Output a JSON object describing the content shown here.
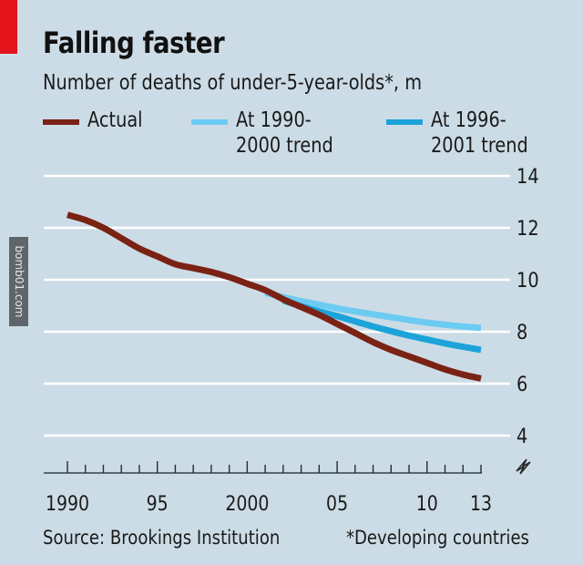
{
  "header": {
    "title": "Falling faster",
    "subtitle": "Number of deaths of under-5-year-olds*, m"
  },
  "legend": [
    {
      "label": "Actual",
      "color": "#7a2214"
    },
    {
      "label": "At 1990-\n2000 trend",
      "color": "#6ccbf2"
    },
    {
      "label": "At 1996-\n2001 trend",
      "color": "#1ba3da"
    }
  ],
  "footer": {
    "source": "Source: Brookings Institution",
    "note": "*Developing countries"
  },
  "watermark": "bomb01.com",
  "colors": {
    "background": "#ccdce6",
    "accent_bar": "#e3141b",
    "gridline": "#ffffff",
    "axis": "#5a6a72"
  },
  "chart_data": {
    "type": "line",
    "title": "Falling faster",
    "subtitle": "Number of deaths of under-5-year-olds*, m",
    "xlabel": "",
    "ylabel": "Number of deaths, m",
    "xlim": [
      1990,
      2013
    ],
    "ylim": [
      4,
      14
    ],
    "y_axis_side": "right",
    "y_axis_break": true,
    "grid": true,
    "legend_position": "top",
    "x_tick_labels": [
      {
        "year": 1990,
        "label": "1990"
      },
      {
        "year": 1995,
        "label": "95"
      },
      {
        "year": 2000,
        "label": "2000"
      },
      {
        "year": 2005,
        "label": "05"
      },
      {
        "year": 2010,
        "label": "10"
      },
      {
        "year": 2013,
        "label": "13"
      }
    ],
    "y_ticks": [
      4,
      6,
      8,
      10,
      12,
      14
    ],
    "series": [
      {
        "name": "Actual",
        "color": "#7a2214",
        "x": [
          1990,
          1991,
          1992,
          1993,
          1994,
          1995,
          1996,
          1997,
          1998,
          1999,
          2000,
          2001,
          2002,
          2003,
          2004,
          2005,
          2006,
          2007,
          2008,
          2009,
          2010,
          2011,
          2012,
          2013
        ],
        "values": [
          12.5,
          12.3,
          12.0,
          11.6,
          11.2,
          10.9,
          10.6,
          10.45,
          10.3,
          10.1,
          9.85,
          9.6,
          9.25,
          8.95,
          8.65,
          8.3,
          7.95,
          7.6,
          7.3,
          7.05,
          6.8,
          6.55,
          6.35,
          6.2
        ]
      },
      {
        "name": "At 1990-2000 trend",
        "color": "#6ccbf2",
        "x": [
          2001,
          2002,
          2003,
          2004,
          2005,
          2006,
          2007,
          2008,
          2009,
          2010,
          2011,
          2012,
          2013
        ],
        "values": [
          9.5,
          9.33,
          9.18,
          9.04,
          8.9,
          8.78,
          8.67,
          8.56,
          8.45,
          8.35,
          8.27,
          8.2,
          8.15
        ]
      },
      {
        "name": "At 1996-2001 trend",
        "color": "#1ba3da",
        "x": [
          2002,
          2003,
          2004,
          2005,
          2006,
          2007,
          2008,
          2009,
          2010,
          2011,
          2012,
          2013
        ],
        "values": [
          9.2,
          8.98,
          8.78,
          8.6,
          8.4,
          8.2,
          8.02,
          7.85,
          7.7,
          7.55,
          7.42,
          7.3
        ]
      }
    ],
    "source": "Source: Brookings Institution",
    "footnote": "*Developing countries"
  }
}
